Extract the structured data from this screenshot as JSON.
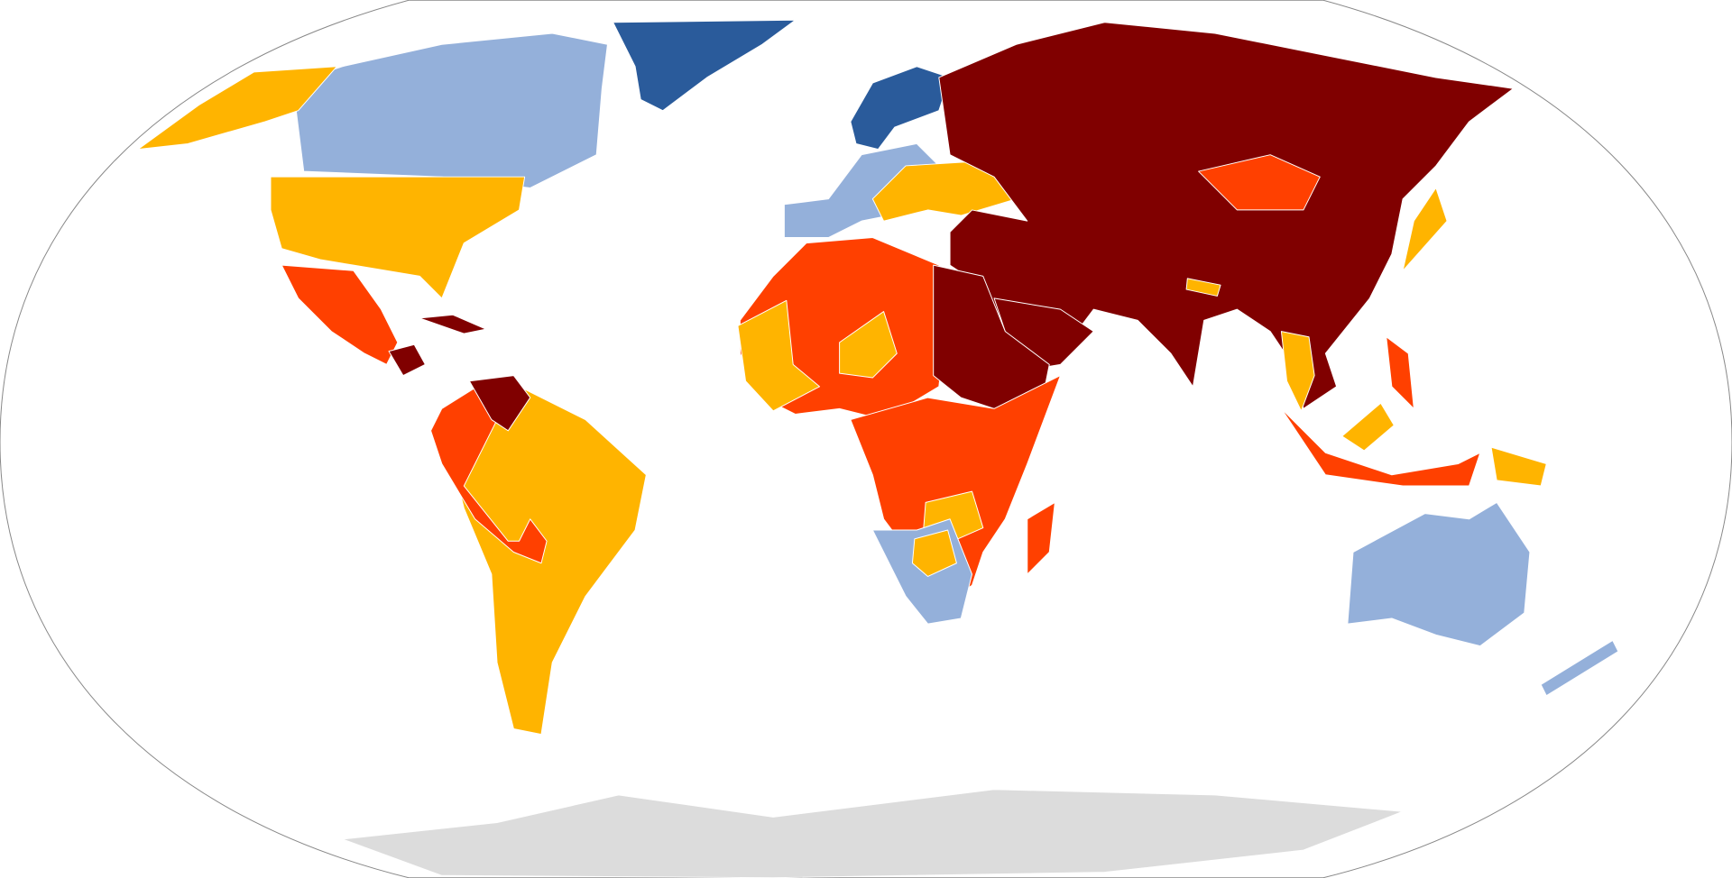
{
  "map": {
    "colors": [
      "#2a5b9b",
      "#94b0da",
      "#ffb400",
      "#ff4000",
      "#800000",
      "#dcdcdc"
    ]
  }
}
